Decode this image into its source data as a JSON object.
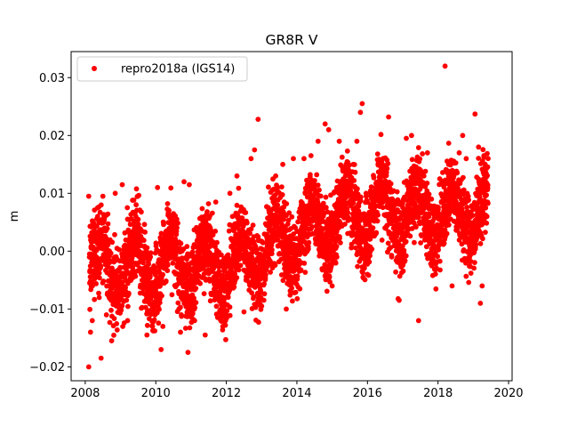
{
  "chart_data": {
    "type": "scatter",
    "title": "GR8R V",
    "xlabel": "",
    "ylabel": "m",
    "xlim": [
      2007.6,
      2020.1
    ],
    "ylim": [
      -0.0224,
      0.0345
    ],
    "x_ticks": [
      2008,
      2010,
      2012,
      2014,
      2016,
      2018,
      2020
    ],
    "x_tick_labels": [
      "2008",
      "2010",
      "2012",
      "2014",
      "2016",
      "2018",
      "2020"
    ],
    "y_ticks": [
      -0.02,
      -0.01,
      0.0,
      0.01,
      0.02,
      0.03
    ],
    "y_tick_labels": [
      "−0.02",
      "−0.01",
      "0.00",
      "0.01",
      "0.02",
      "0.03"
    ],
    "grid": false,
    "legend_position": "upper-left",
    "series": [
      {
        "name": "repro2018a (IGS14)",
        "color": "#ff0000",
        "marker": "circle",
        "points": [
          [
            2008.1,
            0.0095
          ],
          [
            2008.1,
            -0.02
          ],
          [
            2008.15,
            -0.014
          ],
          [
            2008.2,
            -0.012
          ],
          [
            2008.25,
            0.003
          ],
          [
            2008.35,
            0.0075
          ],
          [
            2008.45,
            -0.0185
          ],
          [
            2008.5,
            0.0095
          ],
          [
            2008.6,
            -0.011
          ],
          [
            2008.75,
            -0.0155
          ],
          [
            2008.85,
            0.01
          ],
          [
            2009.05,
            0.0115
          ],
          [
            2009.2,
            -0.012
          ],
          [
            2009.5,
            0.0055
          ],
          [
            2009.75,
            -0.0145
          ],
          [
            2010.05,
            0.011
          ],
          [
            2010.15,
            -0.017
          ],
          [
            2010.2,
            -0.013
          ],
          [
            2010.5,
            0.0065
          ],
          [
            2010.7,
            -0.014
          ],
          [
            2010.8,
            0.012
          ],
          [
            2010.95,
            0.0115
          ],
          [
            2011.1,
            -0.012
          ],
          [
            2011.4,
            -0.0145
          ],
          [
            2011.7,
            0.0085
          ],
          [
            2011.9,
            -0.013
          ],
          [
            2012.1,
            0.01
          ],
          [
            2012.3,
            0.013
          ],
          [
            2012.5,
            -0.0105
          ],
          [
            2012.7,
            0.016
          ],
          [
            2012.8,
            0.0175
          ],
          [
            2012.9,
            0.0228
          ],
          [
            2013.0,
            -0.0095
          ],
          [
            2013.4,
            0.013
          ],
          [
            2013.6,
            0.015
          ],
          [
            2013.7,
            -0.01
          ],
          [
            2013.9,
            0.016
          ],
          [
            2014.2,
            0.016
          ],
          [
            2014.4,
            0.0165
          ],
          [
            2014.6,
            0.019
          ],
          [
            2014.8,
            0.022
          ],
          [
            2014.9,
            0.021
          ],
          [
            2015.0,
            -0.006
          ],
          [
            2015.2,
            0.019
          ],
          [
            2015.3,
            0.014
          ],
          [
            2015.6,
            0.015
          ],
          [
            2015.7,
            0.019
          ],
          [
            2015.8,
            0.024
          ],
          [
            2015.85,
            0.0255
          ],
          [
            2016.0,
            -0.004
          ],
          [
            2016.3,
            0.015
          ],
          [
            2016.6,
            0.0232
          ],
          [
            2016.9,
            -0.0085
          ],
          [
            2017.1,
            0.0195
          ],
          [
            2017.25,
            0.02
          ],
          [
            2017.45,
            -0.012
          ],
          [
            2017.6,
            0.013
          ],
          [
            2017.7,
            0.017
          ],
          [
            2018.2,
            0.032
          ],
          [
            2018.3,
            0.015
          ],
          [
            2018.4,
            -0.006
          ],
          [
            2018.6,
            0.017
          ],
          [
            2018.7,
            0.02
          ],
          [
            2018.8,
            0.016
          ],
          [
            2019.05,
            0.0237
          ],
          [
            2019.15,
            0.018
          ],
          [
            2019.2,
            -0.009
          ],
          [
            2019.25,
            -0.006
          ],
          [
            2019.3,
            0.0165
          ],
          [
            2019.35,
            0.013
          ]
        ]
      }
    ]
  }
}
